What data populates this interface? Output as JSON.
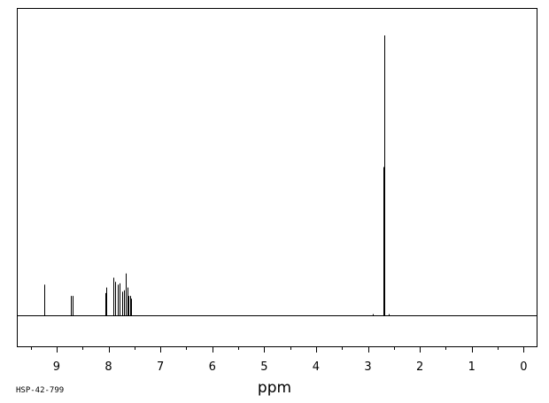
{
  "chart_data": {
    "type": "line",
    "xlabel": "ppm",
    "xlim": [
      9.75,
      -0.25
    ],
    "x_reversed": true,
    "ylim": [
      -0.11,
      1.0
    ],
    "xticks": [
      9,
      8,
      7,
      6,
      5,
      4,
      3,
      2,
      1,
      0
    ],
    "xtick_labels": [
      "9",
      "8",
      "7",
      "6",
      "5",
      "4",
      "3",
      "2",
      "1",
      "0"
    ],
    "minor_tick_step": 0.5,
    "baseline": 0,
    "grid": false,
    "series": [
      {
        "peaks": [
          {
            "x": 9.23,
            "y": 0.11
          },
          {
            "x": 8.72,
            "y": 0.07
          },
          {
            "x": 8.7,
            "y": 0.07
          },
          {
            "x": 8.06,
            "y": 0.08
          },
          {
            "x": 8.04,
            "y": 0.1
          },
          {
            "x": 7.9,
            "y": 0.135
          },
          {
            "x": 7.87,
            "y": 0.12
          },
          {
            "x": 7.83,
            "y": 0.11
          },
          {
            "x": 7.78,
            "y": 0.115
          },
          {
            "x": 7.74,
            "y": 0.085
          },
          {
            "x": 7.7,
            "y": 0.09
          },
          {
            "x": 7.67,
            "y": 0.15
          },
          {
            "x": 7.64,
            "y": 0.1
          },
          {
            "x": 7.61,
            "y": 0.07
          },
          {
            "x": 7.59,
            "y": 0.07
          },
          {
            "x": 7.57,
            "y": 0.06
          },
          {
            "x": 2.9,
            "y": 0.005
          },
          {
            "x": 2.71,
            "y": 0.53
          },
          {
            "x": 2.69,
            "y": 1.0
          },
          {
            "x": 2.6,
            "y": 0.005
          }
        ]
      }
    ]
  },
  "labels": {
    "xlabel": "ppm",
    "sample_id": "HSP-42-799"
  }
}
